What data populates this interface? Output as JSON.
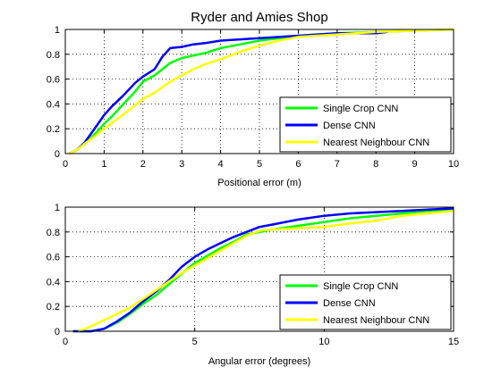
{
  "chart_data": [
    {
      "type": "line",
      "title": "Ryder and Amies Shop",
      "xlabel": "Positional error (m)",
      "ylabel": "",
      "xlim": [
        0,
        10
      ],
      "ylim": [
        0,
        1
      ],
      "xticks": [
        "0",
        "1",
        "2",
        "3",
        "4",
        "5",
        "6",
        "7",
        "8",
        "9",
        "10"
      ],
      "yticks": [
        "0",
        "0.2",
        "0.4",
        "0.6",
        "0.8",
        "1"
      ],
      "grid": true,
      "legend_position": "lower-right",
      "series": [
        {
          "name": "Single Crop CNN",
          "color": "#00ff00",
          "x": [
            0.1,
            0.3,
            0.5,
            0.8,
            1.0,
            1.2,
            1.5,
            1.8,
            2.0,
            2.3,
            2.5,
            2.7,
            3.0,
            3.3,
            3.6,
            4.0,
            4.5,
            5.0,
            5.5,
            6.0,
            7.0,
            8.0,
            9.0,
            10.0
          ],
          "y": [
            0.0,
            0.03,
            0.08,
            0.17,
            0.24,
            0.3,
            0.4,
            0.5,
            0.58,
            0.63,
            0.68,
            0.73,
            0.77,
            0.79,
            0.81,
            0.85,
            0.88,
            0.91,
            0.93,
            0.95,
            0.97,
            0.98,
            0.99,
            1.0
          ]
        },
        {
          "name": "Dense CNN",
          "color": "#0000ff",
          "x": [
            0.1,
            0.3,
            0.5,
            0.8,
            1.0,
            1.2,
            1.5,
            1.8,
            2.0,
            2.3,
            2.5,
            2.7,
            3.0,
            3.3,
            3.6,
            4.0,
            4.5,
            5.0,
            6.0,
            7.0,
            8.0,
            8.3
          ],
          "y": [
            0.0,
            0.03,
            0.09,
            0.22,
            0.31,
            0.38,
            0.47,
            0.57,
            0.62,
            0.68,
            0.78,
            0.85,
            0.86,
            0.88,
            0.89,
            0.91,
            0.92,
            0.93,
            0.95,
            0.97,
            0.97,
            0.98
          ]
        },
        {
          "name": "Nearest Neighbour CNN",
          "color": "#ffff00",
          "x": [
            0.1,
            0.3,
            0.5,
            0.8,
            1.0,
            1.3,
            1.6,
            2.0,
            2.3,
            2.6,
            3.0,
            3.3,
            3.6,
            4.0,
            4.5,
            5.0,
            5.5,
            6.0,
            7.0,
            8.0,
            9.0,
            10.0
          ],
          "y": [
            0.0,
            0.03,
            0.08,
            0.15,
            0.2,
            0.27,
            0.34,
            0.44,
            0.49,
            0.56,
            0.63,
            0.68,
            0.72,
            0.76,
            0.82,
            0.87,
            0.91,
            0.94,
            0.96,
            0.98,
            0.99,
            1.0
          ]
        }
      ]
    },
    {
      "type": "line",
      "title": "",
      "xlabel": "Angular error (degrees)",
      "ylabel": "",
      "xlim": [
        0,
        15
      ],
      "ylim": [
        0,
        1
      ],
      "xticks": [
        "0",
        "5",
        "10",
        "15"
      ],
      "yticks": [
        "0",
        "0.2",
        "0.4",
        "0.6",
        "0.8",
        "1"
      ],
      "grid": true,
      "legend_position": "lower-right",
      "series": [
        {
          "name": "Single Crop CNN",
          "color": "#00ff00",
          "x": [
            0.3,
            1.0,
            1.5,
            2.0,
            2.5,
            3.0,
            3.5,
            3.9,
            4.3,
            4.7,
            5.0,
            5.5,
            6.0,
            6.5,
            7.0,
            7.5,
            8.0,
            9.0,
            10.0,
            11.0,
            12.0,
            13.0,
            14.0,
            15.0
          ],
          "y": [
            0.0,
            0.0,
            0.02,
            0.07,
            0.14,
            0.22,
            0.29,
            0.36,
            0.43,
            0.5,
            0.55,
            0.61,
            0.67,
            0.72,
            0.78,
            0.8,
            0.82,
            0.85,
            0.88,
            0.91,
            0.93,
            0.95,
            0.97,
            0.98
          ]
        },
        {
          "name": "Dense CNN",
          "color": "#0000ff",
          "x": [
            0.3,
            1.0,
            1.5,
            2.0,
            2.5,
            3.0,
            3.5,
            4.0,
            4.5,
            5.0,
            5.5,
            6.0,
            6.5,
            7.0,
            7.5,
            8.0,
            9.0,
            10.0,
            11.0,
            12.0,
            13.0,
            14.0,
            15.0
          ],
          "y": [
            0.0,
            0.0,
            0.02,
            0.08,
            0.15,
            0.24,
            0.32,
            0.41,
            0.52,
            0.6,
            0.66,
            0.71,
            0.76,
            0.8,
            0.84,
            0.86,
            0.9,
            0.93,
            0.95,
            0.96,
            0.97,
            0.98,
            0.99
          ]
        },
        {
          "name": "Nearest Neighbour CNN",
          "color": "#ffff00",
          "x": [
            0.5,
            1.0,
            1.5,
            2.0,
            2.5,
            3.0,
            3.5,
            4.0,
            4.5,
            5.0,
            5.5,
            6.0,
            6.5,
            7.0,
            7.5,
            8.0,
            9.0,
            10.0,
            11.0,
            12.0,
            13.0,
            14.0,
            15.0
          ],
          "y": [
            0.0,
            0.04,
            0.09,
            0.14,
            0.19,
            0.26,
            0.33,
            0.4,
            0.47,
            0.53,
            0.59,
            0.65,
            0.71,
            0.77,
            0.81,
            0.82,
            0.83,
            0.84,
            0.87,
            0.89,
            0.93,
            0.95,
            0.97
          ]
        }
      ]
    }
  ]
}
